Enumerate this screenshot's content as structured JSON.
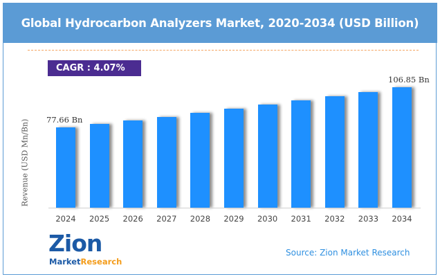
{
  "header": {
    "title": "Global Hydrocarbon Analyzers Market, 2020-2034 (USD Billion)"
  },
  "cagr": {
    "label": "CAGR : 4.07%"
  },
  "footer": {
    "source": "Source: Zion Market Research",
    "logo_top": "Zion",
    "logo_market": "Market",
    "logo_research": "Research"
  },
  "colors": {
    "header_bg": "#5b9bd5",
    "bar": "#1e90ff",
    "cagr_bg": "#4b2c91",
    "source_text": "#2e8fe0",
    "dash": "#f4a460"
  },
  "chart_data": {
    "type": "bar",
    "title": "Global Hydrocarbon Analyzers Market, 2020-2034 (USD Billion)",
    "xlabel": "",
    "ylabel": "Revenue (USD Mn/Bn)",
    "categories": [
      "2024",
      "2025",
      "2026",
      "2027",
      "2028",
      "2029",
      "2030",
      "2031",
      "2032",
      "2033",
      "2034"
    ],
    "values": [
      77.66,
      80.18,
      82.78,
      85.46,
      88.23,
      91.09,
      94.04,
      97.09,
      100.24,
      103.49,
      106.85
    ],
    "data_labels": {
      "2024": "77.66 Bn",
      "2034": "106.85 Bn"
    },
    "annotations": [
      "CAGR : 4.07%"
    ],
    "grid": false,
    "legend": "none",
    "ylim_estimated": [
      19.4,
      115
    ]
  }
}
